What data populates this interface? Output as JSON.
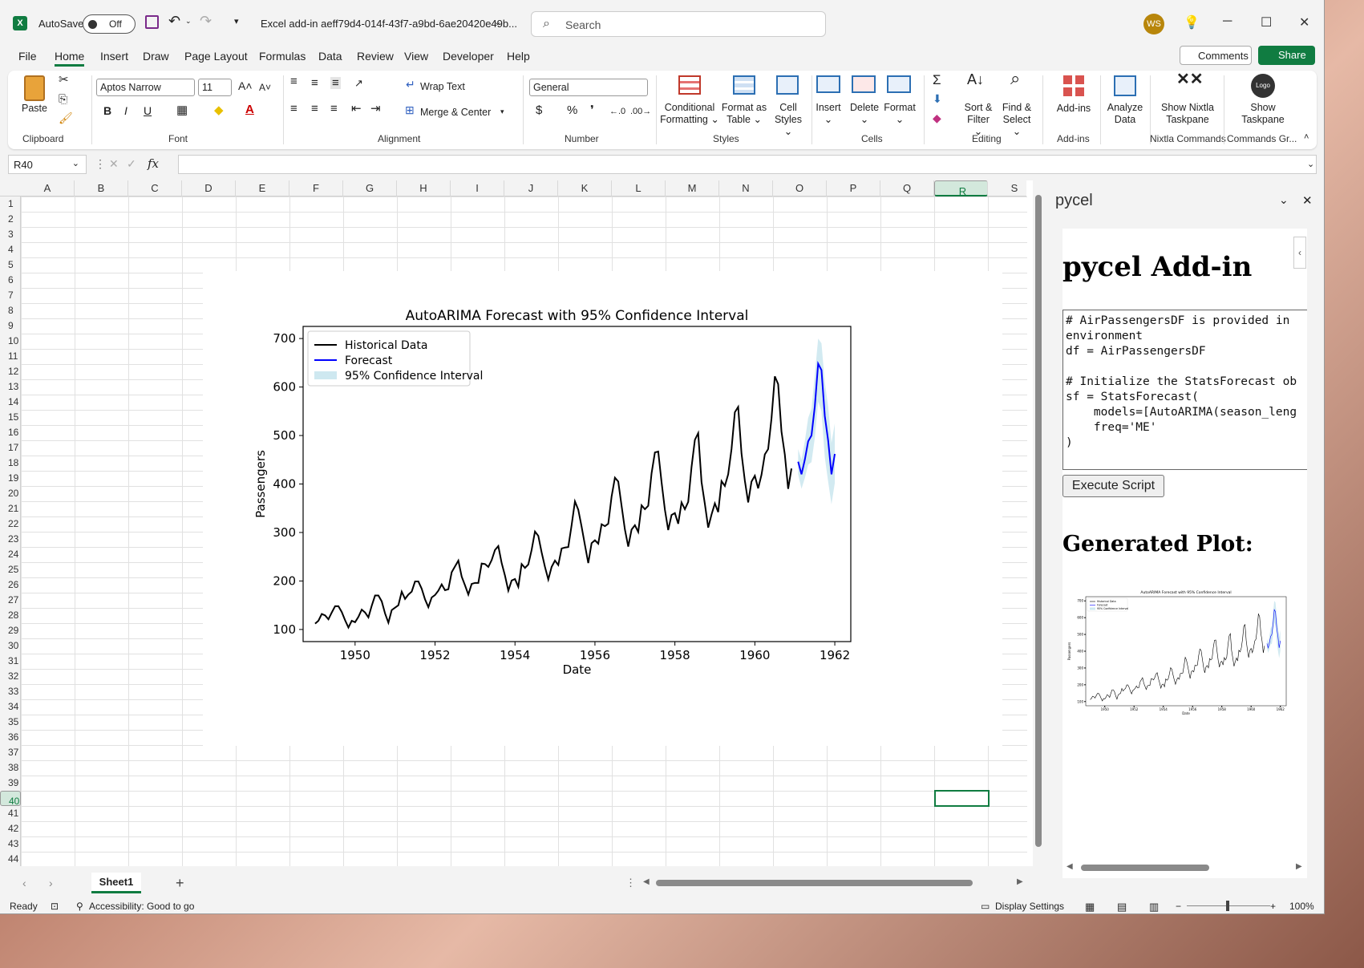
{
  "titlebar": {
    "autosave_label": "AutoSave",
    "autosave_state": "Off",
    "doc_title": "Excel add-in aeff79d4-014f-43f7-a9bd-6ae20420e49b...",
    "search_placeholder": "Search",
    "user_initials": "WS"
  },
  "menu": [
    "File",
    "Home",
    "Insert",
    "Draw",
    "Page Layout",
    "Formulas",
    "Data",
    "Review",
    "View",
    "Developer",
    "Help"
  ],
  "menu_active": "Home",
  "comments_label": "Comments",
  "share_label": "Share",
  "ribbon": {
    "paste": "Paste",
    "clipboard": "Clipboard",
    "font_name": "Aptos Narrow",
    "font_size": "11",
    "font_group": "Font",
    "bold": "B",
    "italic": "I",
    "underline": "U",
    "wrap_text": "Wrap Text",
    "merge_center": "Merge & Center",
    "alignment_group": "Alignment",
    "number_format": "General",
    "number_group": "Number",
    "conditional_formatting": [
      "Conditional",
      "Formatting"
    ],
    "format_as_table": [
      "Format as",
      "Table"
    ],
    "cell_styles": [
      "Cell",
      "Styles"
    ],
    "styles_group": "Styles",
    "insert": "Insert",
    "delete": "Delete",
    "format": "Format",
    "cells_group": "Cells",
    "sort_filter": [
      "Sort &",
      "Filter"
    ],
    "find_select": [
      "Find &",
      "Select"
    ],
    "editing_group": "Editing",
    "addins": "Add-ins",
    "addins_group": "Add-ins",
    "analyze_data": [
      "Analyze",
      "Data"
    ],
    "show_nixtla": [
      "Show Nixtla",
      "Taskpane"
    ],
    "nixtla_group": "Nixtla Commands",
    "show_taskpane": [
      "Show",
      "Taskpane"
    ],
    "commands_group": "Commands Gr...",
    "logo_text": "Logo"
  },
  "formula_bar": {
    "name_box": "R40",
    "fx": "fx",
    "value": ""
  },
  "columns": [
    "A",
    "B",
    "C",
    "D",
    "E",
    "F",
    "G",
    "H",
    "I",
    "J",
    "K",
    "L",
    "M",
    "N",
    "O",
    "P",
    "Q",
    "R",
    "S"
  ],
  "rows": [
    "1",
    "2",
    "3",
    "4",
    "5",
    "6",
    "7",
    "8",
    "9",
    "10",
    "11",
    "12",
    "13",
    "14",
    "15",
    "16",
    "17",
    "18",
    "19",
    "20",
    "21",
    "22",
    "23",
    "24",
    "25",
    "26",
    "27",
    "28",
    "29",
    "30",
    "31",
    "32",
    "33",
    "34",
    "35",
    "36",
    "37",
    "38",
    "39",
    "40",
    "41",
    "42",
    "43",
    "44"
  ],
  "selected_col": "R",
  "selected_row": "40",
  "sheet_tab": "Sheet1",
  "status": {
    "ready": "Ready",
    "accessibility": "Accessibility: Good to go",
    "display_settings": "Display Settings",
    "zoom": "100%"
  },
  "pane": {
    "title": "pycel",
    "heading": "pycel Add-in",
    "code": "# AirPassengersDF is provided in\nenvironment\ndf = AirPassengersDF\n\n# Initialize the StatsForecast ob\nsf = StatsForecast(\n    models=[AutoARIMA(season_leng\n    freq='ME'\n)",
    "execute_label": "Execute Script",
    "plot_heading": "Generated Plot:"
  },
  "chart_data": {
    "type": "line",
    "title": "AutoARIMA Forecast with 95% Confidence Interval",
    "xlabel": "Date",
    "ylabel": "Passengers",
    "xlim": [
      1948.7,
      1962.4
    ],
    "ylim": [
      75,
      725
    ],
    "xticks": [
      1950,
      1952,
      1954,
      1956,
      1958,
      1960,
      1962
    ],
    "yticks": [
      100,
      200,
      300,
      400,
      500,
      600,
      700
    ],
    "legend": {
      "position": "top-left",
      "entries": [
        "Historical Data",
        "Forecast",
        "95% Confidence Interval"
      ]
    },
    "series": [
      {
        "name": "Historical Data",
        "color": "#000000",
        "start": 1949.0,
        "step": 0.08333,
        "values": [
          112,
          118,
          132,
          129,
          121,
          135,
          148,
          148,
          136,
          119,
          104,
          118,
          115,
          126,
          141,
          135,
          125,
          149,
          170,
          170,
          158,
          133,
          114,
          140,
          145,
          150,
          178,
          163,
          172,
          178,
          199,
          199,
          184,
          162,
          146,
          166,
          171,
          180,
          193,
          181,
          183,
          218,
          230,
          242,
          209,
          191,
          172,
          194,
          196,
          196,
          236,
          235,
          229,
          243,
          264,
          272,
          237,
          211,
          180,
          201,
          204,
          188,
          235,
          227,
          234,
          264,
          302,
          293,
          259,
          229,
          203,
          229,
          242,
          233,
          267,
          269,
          270,
          315,
          364,
          347,
          312,
          274,
          237,
          278,
          284,
          277,
          317,
          313,
          318,
          374,
          413,
          405,
          355,
          306,
          271,
          306,
          315,
          301,
          356,
          348,
          355,
          422,
          465,
          467,
          404,
          347,
          305,
          336,
          340,
          318,
          362,
          348,
          363,
          435,
          491,
          505,
          404,
          359,
          310,
          337,
          360,
          342,
          406,
          396,
          420,
          472,
          548,
          559,
          463,
          407,
          362,
          405,
          417,
          391,
          419,
          461,
          472,
          535,
          622,
          606,
          508,
          461,
          390,
          432
        ]
      },
      {
        "name": "Forecast",
        "color": "#0000ff",
        "start": 1961.0833,
        "step": 0.08333,
        "values": [
          446,
          420,
          450,
          488,
          500,
          560,
          648,
          635,
          540,
          490,
          420,
          462
        ]
      }
    ],
    "confidence": {
      "name": "95% Confidence Interval",
      "color": "#add8e6",
      "lower": [
        420,
        390,
        412,
        440,
        445,
        495,
        570,
        550,
        455,
        405,
        358,
        402
      ],
      "upper": [
        472,
        450,
        488,
        536,
        555,
        625,
        700,
        690,
        610,
        560,
        485,
        525
      ]
    }
  }
}
